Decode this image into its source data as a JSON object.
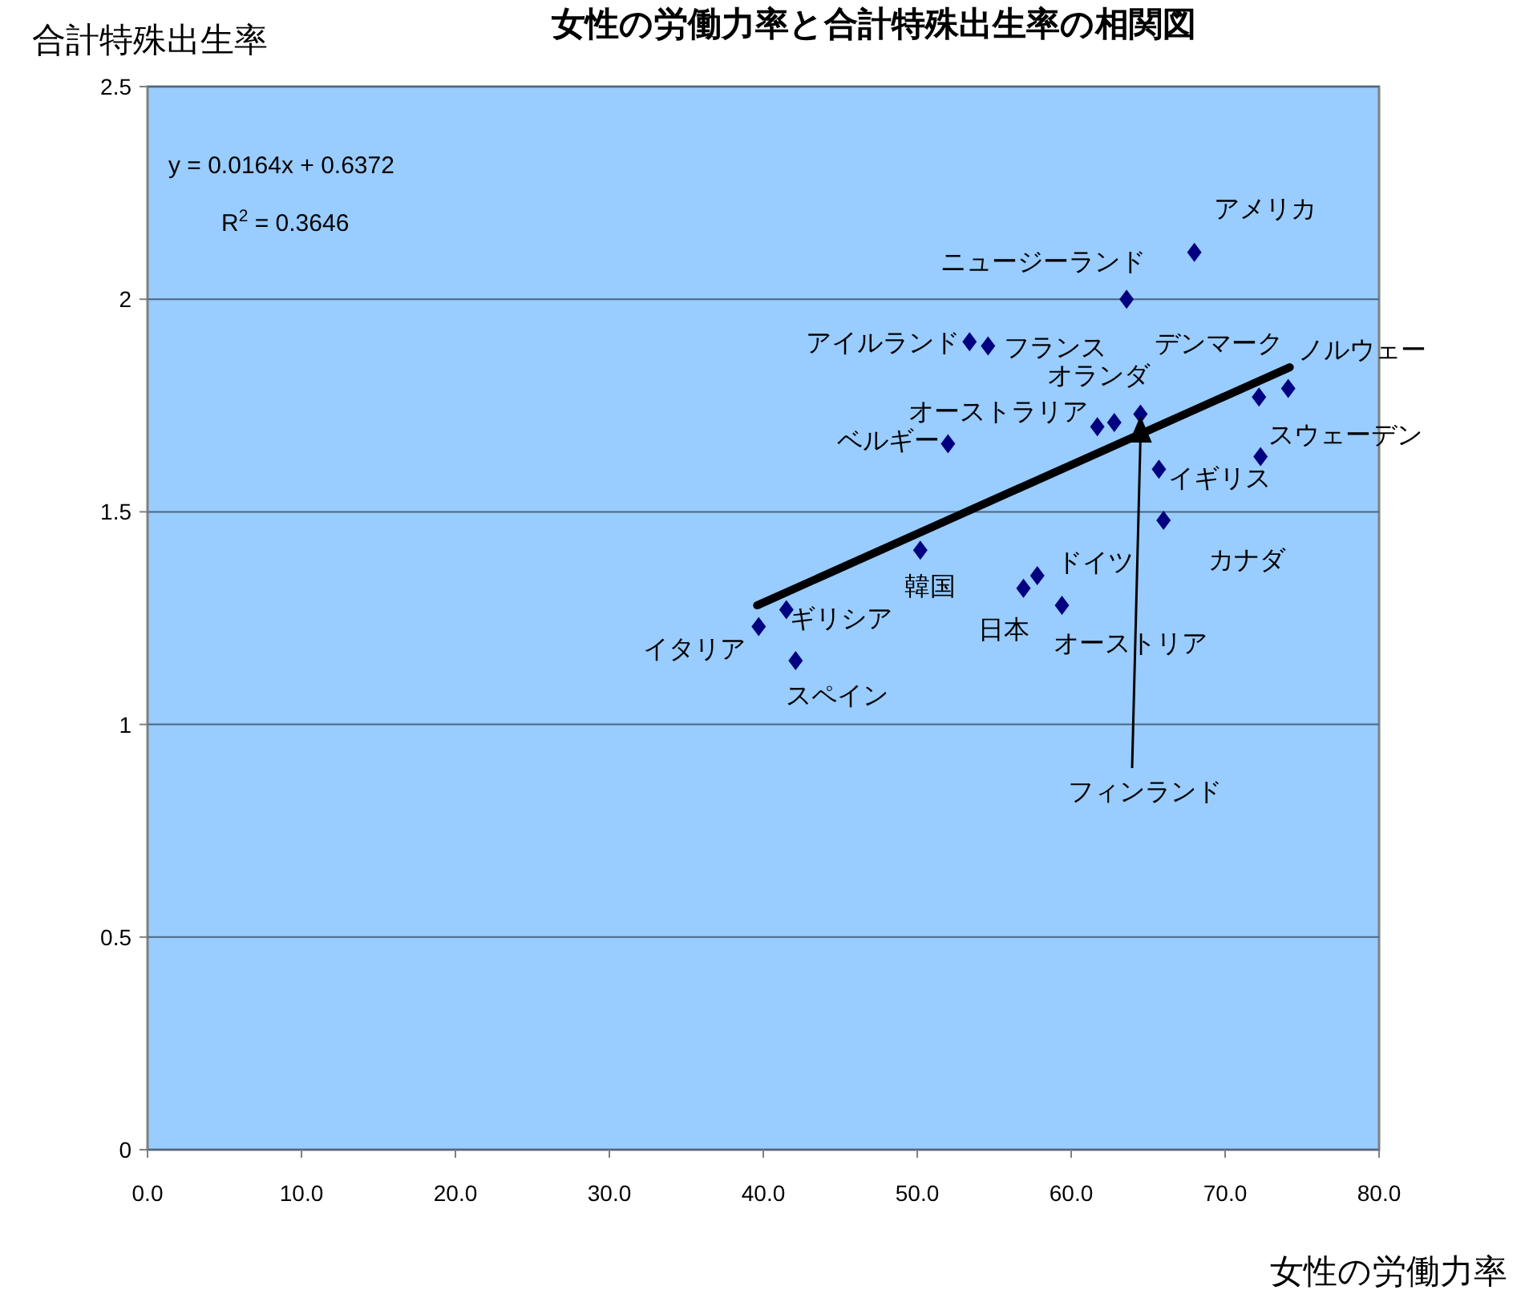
{
  "chart_data": {
    "type": "scatter",
    "title": "女性の労働力率と合計特殊出生率の相関図",
    "xlabel": "女性の労働力率",
    "ylabel": "合計特殊出生率",
    "x": [
      68.0,
      63.6,
      53.4,
      54.6,
      52.0,
      61.7,
      62.8,
      64.5,
      72.2,
      74.1,
      72.3,
      65.7,
      66.0,
      50.2,
      57.8,
      56.9,
      59.4,
      41.5,
      39.7,
      42.1
    ],
    "series": [
      {
        "type": "scatter",
        "color": "#000080",
        "marker": "diamond",
        "values": [
          2.11,
          2.0,
          1.9,
          1.89,
          1.66,
          1.7,
          1.71,
          1.73,
          1.77,
          1.79,
          1.63,
          1.6,
          1.48,
          1.41,
          1.35,
          1.32,
          1.28,
          1.27,
          1.23,
          1.15
        ]
      },
      {
        "type": "line",
        "color": "#000000",
        "x": [
          39.6,
          74.2
        ],
        "values": [
          1.28,
          1.84
        ]
      }
    ],
    "xlim": [
      0,
      80
    ],
    "ylim": [
      0,
      2.5
    ],
    "xticks": [
      {
        "value": 0,
        "label": "0.0"
      },
      {
        "value": 10,
        "label": "10.0"
      },
      {
        "value": 20,
        "label": "20.0"
      },
      {
        "value": 30,
        "label": "30.0"
      },
      {
        "value": 40,
        "label": "40.0"
      },
      {
        "value": 50,
        "label": "50.0"
      },
      {
        "value": 60,
        "label": "60.0"
      },
      {
        "value": 70,
        "label": "70.0"
      },
      {
        "value": 80,
        "label": "80.0"
      }
    ],
    "yticks": [
      0,
      0.5,
      1,
      1.5,
      2,
      2.5
    ],
    "grid": "y",
    "annotations": [
      "y = 0.0164x + 0.6372",
      "R$^{2}$ = 0.3646",
      {
        "text": "アメリカ",
        "x": 68.0,
        "y": 2.11
      },
      {
        "text": "ニュージーランド",
        "x": 63.6,
        "y": 2.0
      },
      {
        "text": "アイルランド",
        "x": 53.4,
        "y": 1.9
      },
      {
        "text": "フランス",
        "x": 54.6,
        "y": 1.89
      },
      {
        "text": "ベルギー",
        "x": 52.0,
        "y": 1.66
      },
      {
        "text": "オーストラリア",
        "x": 61.7,
        "y": 1.7
      },
      {
        "text": "オランダ",
        "x": 62.8,
        "y": 1.71
      },
      "フィンランド",
      {
        "text": "デンマーク",
        "x": 72.2,
        "y": 1.77
      },
      {
        "text": "ノルウェー",
        "x": 74.1,
        "y": 1.79
      },
      {
        "text": "スウェーデン",
        "x": 72.3,
        "y": 1.63
      },
      {
        "text": "イギリス",
        "x": 65.7,
        "y": 1.6
      },
      {
        "text": "カナダ",
        "x": 66.0,
        "y": 1.48
      },
      {
        "text": "韓国",
        "x": 50.2,
        "y": 1.41
      },
      {
        "text": "ドイツ",
        "x": 57.8,
        "y": 1.35
      },
      {
        "text": "日本",
        "x": 56.9,
        "y": 1.32
      },
      {
        "text": "オーストリア",
        "x": 59.4,
        "y": 1.28
      },
      {
        "text": "ギリシア",
        "x": 41.5,
        "y": 1.27
      },
      {
        "text": "イタリア",
        "x": 39.7,
        "y": 1.23
      },
      {
        "text": "スペイン",
        "x": 42.1,
        "y": 1.15
      }
    ]
  }
}
